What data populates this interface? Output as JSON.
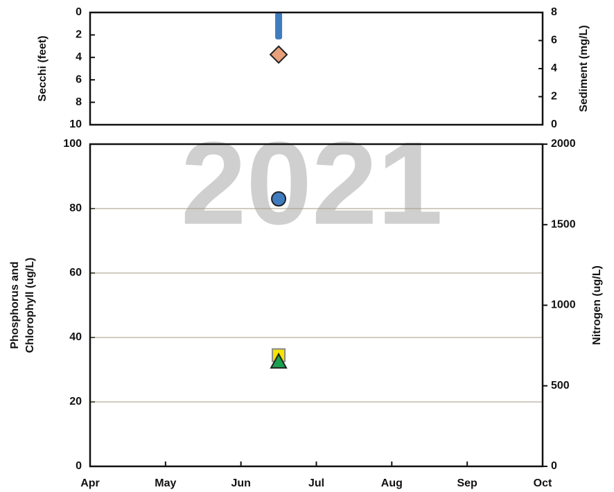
{
  "chart_data": [
    {
      "type": "scatter",
      "ylabel": "Secchi (feet)",
      "y2label": "Sediment (mg/L)",
      "ylim": [
        0,
        10
      ],
      "yticks": [
        0,
        2,
        4,
        6,
        8,
        10
      ],
      "y_inverted": true,
      "y2lim": [
        0,
        8
      ],
      "y2ticks": [
        0,
        2,
        4,
        6,
        8
      ],
      "series": [
        {
          "marker": "bar",
          "color": "#3f7cbf",
          "x": [
            "Jun"
          ],
          "values": [
            2.4
          ]
        },
        {
          "marker": "diamond",
          "color": "#e8a07a",
          "axis": "y2",
          "x": [
            "Jun"
          ],
          "values": [
            5
          ]
        }
      ]
    },
    {
      "type": "scatter",
      "ylabel": [
        "Phosphorus and",
        "Chlorophyll (ug/L)"
      ],
      "y2label": "Nitrogen (ug/L)",
      "annotation": "2021",
      "xticks": [
        "Apr",
        "May",
        "Jun",
        "Jul",
        "Aug",
        "Sep",
        "Oct"
      ],
      "ylim": [
        0,
        100
      ],
      "yticks": [
        0,
        20,
        40,
        60,
        80,
        100
      ],
      "grid": true,
      "y2lim": [
        0,
        2000
      ],
      "y2ticks": [
        0,
        500,
        1000,
        1500,
        2000
      ],
      "series": [
        {
          "marker": "circle",
          "color": "#3f7cbf",
          "axis": "y2",
          "x": [
            "Jun"
          ],
          "values": [
            1660
          ]
        },
        {
          "marker": "square",
          "color": "#f5e400",
          "x": [
            "Jun"
          ],
          "values": [
            34.5
          ]
        },
        {
          "marker": "triangle",
          "color": "#1aa050",
          "x": [
            "Jun"
          ],
          "values": [
            32.5
          ]
        }
      ]
    }
  ]
}
